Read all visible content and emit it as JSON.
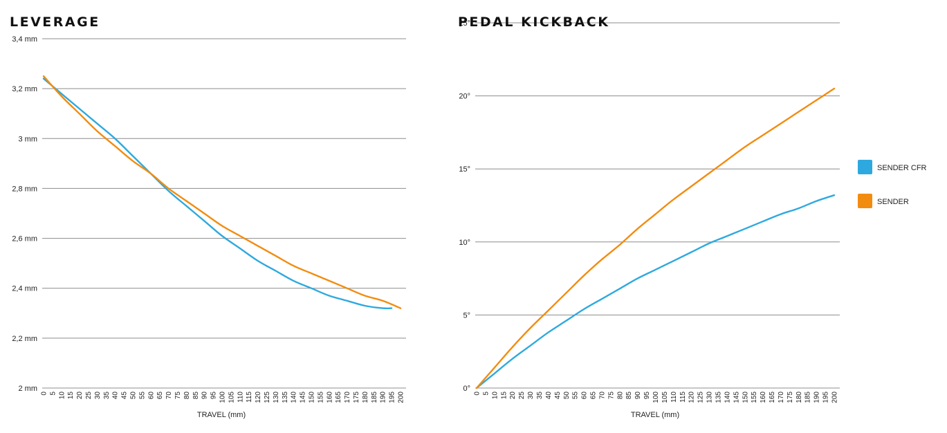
{
  "colors": {
    "sender_cfr": "#2ea9df",
    "sender": "#f28c0f"
  },
  "legend": {
    "placement": "right",
    "items": [
      {
        "label": "SENDER CFR",
        "color": "#2ea9df"
      },
      {
        "label": "SENDER",
        "color": "#f28c0f"
      }
    ]
  },
  "chart_data": [
    {
      "type": "line",
      "title": "LEVERAGE",
      "xlabel": "TRAVEL (mm)",
      "ylabel": "",
      "xlim": [
        0,
        200
      ],
      "ylim": [
        2,
        3.4
      ],
      "grid": true,
      "x_tick_labels": [
        "0",
        "5",
        "10",
        "15",
        "20",
        "25",
        "30",
        "35",
        "40",
        "45",
        "50",
        "55",
        "60",
        "65",
        "70",
        "75",
        "80",
        "85",
        "90",
        "95",
        "100",
        "105",
        "110",
        "115",
        "120",
        "125",
        "130",
        "135",
        "140",
        "145",
        "150",
        "155",
        "160",
        "165",
        "170",
        "175",
        "180",
        "185",
        "190",
        "195",
        "200"
      ],
      "y_ticks": [
        {
          "value": 2.0,
          "label": "2 mm"
        },
        {
          "value": 2.2,
          "label": "2,2 mm"
        },
        {
          "value": 2.4,
          "label": "2,4 mm"
        },
        {
          "value": 2.6,
          "label": "2,6 mm"
        },
        {
          "value": 2.8,
          "label": "2,8 mm"
        },
        {
          "value": 3.0,
          "label": "3 mm"
        },
        {
          "value": 3.2,
          "label": "3,2 mm"
        },
        {
          "value": 3.4,
          "label": "3,4 mm"
        }
      ],
      "series": [
        {
          "name": "SENDER CFR",
          "x": [
            0,
            10,
            20,
            30,
            40,
            50,
            60,
            70,
            80,
            90,
            100,
            110,
            120,
            130,
            140,
            150,
            160,
            170,
            180,
            190,
            195
          ],
          "values": [
            3.24,
            3.18,
            3.12,
            3.06,
            3.0,
            2.93,
            2.86,
            2.79,
            2.73,
            2.67,
            2.61,
            2.56,
            2.51,
            2.47,
            2.43,
            2.4,
            2.37,
            2.35,
            2.33,
            2.32,
            2.32
          ]
        },
        {
          "name": "SENDER",
          "x": [
            0,
            10,
            20,
            30,
            40,
            50,
            60,
            70,
            80,
            90,
            100,
            110,
            120,
            130,
            140,
            150,
            160,
            170,
            180,
            190,
            200
          ],
          "values": [
            3.25,
            3.17,
            3.1,
            3.03,
            2.97,
            2.91,
            2.86,
            2.8,
            2.75,
            2.7,
            2.65,
            2.61,
            2.57,
            2.53,
            2.49,
            2.46,
            2.43,
            2.4,
            2.37,
            2.35,
            2.32
          ]
        }
      ]
    },
    {
      "type": "line",
      "title": "PEDAL KICKBACK",
      "xlabel": "TRAVEL (mm)",
      "ylabel": "",
      "xlim": [
        0,
        200
      ],
      "ylim": [
        0,
        25
      ],
      "grid": true,
      "x_tick_labels": [
        "0",
        "5",
        "10",
        "15",
        "20",
        "25",
        "30",
        "35",
        "40",
        "45",
        "50",
        "55",
        "60",
        "65",
        "70",
        "75",
        "80",
        "85",
        "90",
        "95",
        "100",
        "105",
        "110",
        "115",
        "120",
        "125",
        "130",
        "135",
        "140",
        "145",
        "150",
        "155",
        "160",
        "165",
        "170",
        "175",
        "180",
        "185",
        "190",
        "195",
        "200"
      ],
      "y_ticks": [
        {
          "value": 0,
          "label": "0°"
        },
        {
          "value": 5,
          "label": "5°"
        },
        {
          "value": 10,
          "label": "10°"
        },
        {
          "value": 15,
          "label": "15°"
        },
        {
          "value": 20,
          "label": "20°"
        },
        {
          "value": 25,
          "label": "25°"
        }
      ],
      "series": [
        {
          "name": "SENDER CFR",
          "x": [
            0,
            10,
            20,
            30,
            40,
            50,
            60,
            70,
            80,
            90,
            100,
            110,
            120,
            130,
            140,
            150,
            160,
            170,
            180,
            190,
            200
          ],
          "values": [
            0,
            1.0,
            2.0,
            2.9,
            3.8,
            4.6,
            5.4,
            6.1,
            6.8,
            7.5,
            8.1,
            8.7,
            9.3,
            9.9,
            10.4,
            10.9,
            11.4,
            11.9,
            12.3,
            12.8,
            13.2
          ]
        },
        {
          "name": "SENDER",
          "x": [
            0,
            10,
            20,
            30,
            40,
            50,
            60,
            70,
            80,
            90,
            100,
            110,
            120,
            130,
            140,
            150,
            160,
            170,
            180,
            190,
            200
          ],
          "values": [
            0,
            1.4,
            2.8,
            4.1,
            5.3,
            6.5,
            7.7,
            8.8,
            9.8,
            10.9,
            11.9,
            12.9,
            13.8,
            14.7,
            15.6,
            16.5,
            17.3,
            18.1,
            18.9,
            19.7,
            20.5
          ]
        }
      ]
    }
  ]
}
